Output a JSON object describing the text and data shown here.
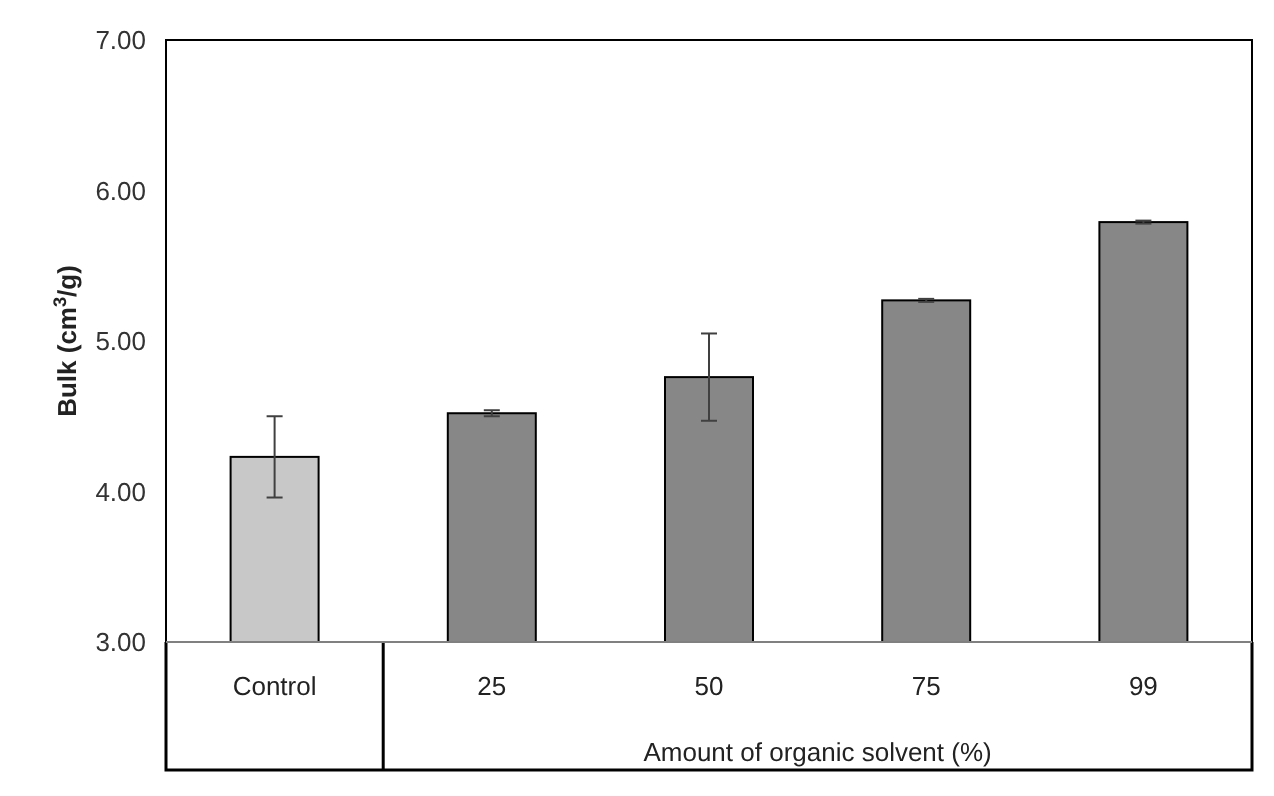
{
  "chart_data": {
    "type": "bar",
    "ylabel": "Bulk (cm$^{3}$/g)",
    "xlabel": "Amount of organic solvent (%)",
    "categories": [
      "Control",
      "25",
      "50",
      "75",
      "99"
    ],
    "values": [
      4.23,
      4.52,
      4.76,
      5.27,
      5.79
    ],
    "errors": [
      0.27,
      0.02,
      0.29,
      0.01,
      0.01
    ],
    "colors": [
      "#c8c8c8",
      "#878787",
      "#878787",
      "#878787",
      "#878787"
    ],
    "ylim": [
      3,
      7
    ],
    "yticks": [
      {
        "value": 3,
        "label": "3.00"
      },
      {
        "value": 4,
        "label": "4.00"
      },
      {
        "value": 5,
        "label": "5.00"
      },
      {
        "value": 6,
        "label": "6.00"
      },
      {
        "value": 7,
        "label": "7.00"
      }
    ],
    "grid": false
  }
}
